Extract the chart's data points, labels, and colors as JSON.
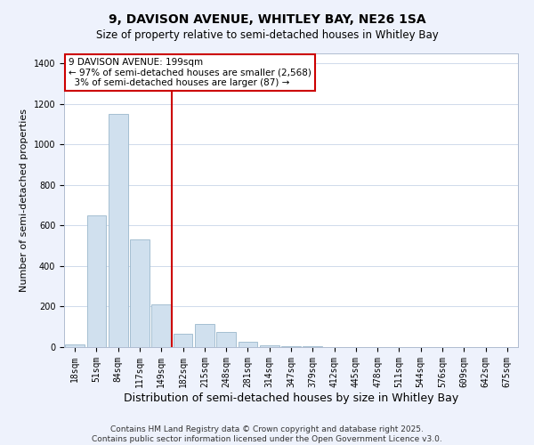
{
  "title": "9, DAVISON AVENUE, WHITLEY BAY, NE26 1SA",
  "subtitle": "Size of property relative to semi-detached houses in Whitley Bay",
  "xlabel": "Distribution of semi-detached houses by size in Whitley Bay",
  "ylabel": "Number of semi-detached properties",
  "property_label": "9 DAVISON AVENUE: 199sqm",
  "pct_smaller": 97,
  "count_smaller": 2568,
  "pct_larger": 3,
  "count_larger": 87,
  "annotation_house_type": "semi-detached",
  "bin_labels": [
    "18sqm",
    "51sqm",
    "84sqm",
    "117sqm",
    "149sqm",
    "182sqm",
    "215sqm",
    "248sqm",
    "281sqm",
    "314sqm",
    "347sqm",
    "379sqm",
    "412sqm",
    "445sqm",
    "478sqm",
    "511sqm",
    "544sqm",
    "576sqm",
    "609sqm",
    "642sqm",
    "675sqm"
  ],
  "bar_heights": [
    15,
    650,
    1150,
    530,
    210,
    65,
    115,
    75,
    25,
    10,
    5,
    3,
    2,
    1,
    1,
    0,
    0,
    0,
    0,
    0,
    0
  ],
  "bar_color": "#d0e0ee",
  "bar_edgecolor": "#9ab8cc",
  "vline_color": "#cc0000",
  "vline_position": 4.5,
  "annotation_box_edgecolor": "#cc0000",
  "ylim": [
    0,
    1450
  ],
  "yticks": [
    0,
    200,
    400,
    600,
    800,
    1000,
    1200,
    1400
  ],
  "footer_line1": "Contains HM Land Registry data © Crown copyright and database right 2025.",
  "footer_line2": "Contains public sector information licensed under the Open Government Licence v3.0.",
  "background_color": "#eef2fc",
  "plot_background": "#ffffff",
  "grid_color": "#c8d4e8",
  "title_fontsize": 10,
  "subtitle_fontsize": 8.5,
  "xlabel_fontsize": 9,
  "ylabel_fontsize": 8,
  "tick_fontsize": 7,
  "footer_fontsize": 6.5,
  "annotation_fontsize": 7.5
}
